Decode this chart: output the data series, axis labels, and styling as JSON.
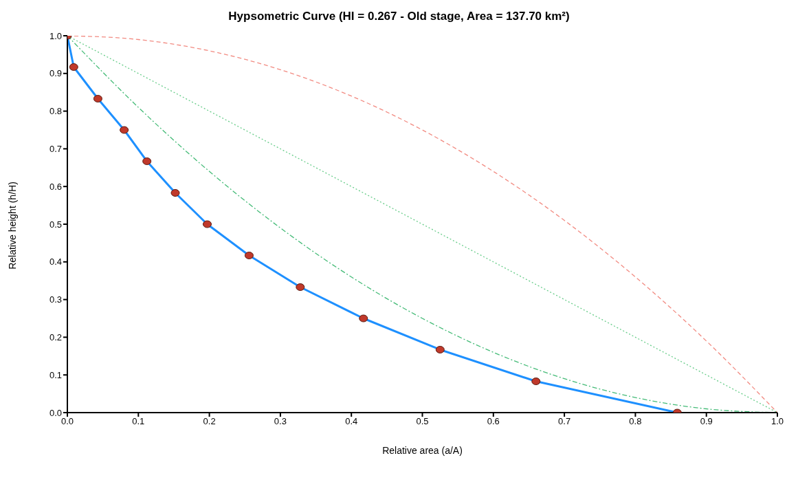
{
  "chart_data": {
    "type": "line",
    "title": "Hypsometric Curve (HI = 0.267 - Old stage, Area = 137.70 km²)",
    "xlabel": "Relative area (a/A)",
    "ylabel": "Relative height (h/H)",
    "xlim": [
      0,
      1
    ],
    "ylim": [
      0,
      1
    ],
    "xticks": [
      {
        "value": 0,
        "label": "0.0"
      },
      {
        "value": 0.1,
        "label": "0.1"
      },
      {
        "value": 0.2,
        "label": "0.2"
      },
      {
        "value": 0.3,
        "label": "0.3"
      },
      {
        "value": 0.4,
        "label": "0.4"
      },
      {
        "value": 0.5,
        "label": "0.5"
      },
      {
        "value": 0.6,
        "label": "0.6"
      },
      {
        "value": 0.7,
        "label": "0.7"
      },
      {
        "value": 0.8,
        "label": "0.8"
      },
      {
        "value": 0.9,
        "label": "0.9"
      },
      {
        "value": 1,
        "label": "1.0"
      }
    ],
    "yticks": [
      {
        "value": 0,
        "label": "0.0"
      },
      {
        "value": 0.1,
        "label": "0.1"
      },
      {
        "value": 0.2,
        "label": "0.2"
      },
      {
        "value": 0.3,
        "label": "0.3"
      },
      {
        "value": 0.4,
        "label": "0.4"
      },
      {
        "value": 0.5,
        "label": "0.5"
      },
      {
        "value": 0.6,
        "label": "0.6"
      },
      {
        "value": 0.7,
        "label": "0.7"
      },
      {
        "value": 0.8,
        "label": "0.8"
      },
      {
        "value": 0.9,
        "label": "0.9"
      },
      {
        "value": 1,
        "label": "1.0"
      }
    ],
    "grid": false,
    "series": [
      {
        "color": "#f28b82",
        "line_style": "dashed",
        "marker": "none",
        "x": [
          0,
          0.1,
          0.2,
          0.3,
          0.4,
          0.5,
          0.6,
          0.7,
          0.8,
          0.9,
          1
        ],
        "values": [
          1,
          0.99,
          0.96,
          0.91,
          0.84,
          0.75,
          0.64,
          0.51,
          0.36,
          0.19,
          0
        ]
      },
      {
        "color": "#66cc88",
        "line_style": "dotted",
        "marker": "none",
        "x": [
          0,
          1
        ],
        "values": [
          1,
          0
        ]
      },
      {
        "color": "#44bb77",
        "line_style": "dashdot",
        "marker": "none",
        "x": [
          0,
          0.1,
          0.2,
          0.3,
          0.4,
          0.5,
          0.6,
          0.7,
          0.8,
          0.9,
          1
        ],
        "values": [
          1,
          0.81,
          0.64,
          0.49,
          0.36,
          0.25,
          0.16,
          0.09,
          0.04,
          0.01,
          0
        ]
      },
      {
        "color": "#1e90ff",
        "line_style": "solid",
        "marker": "circle",
        "colors": [
          "#c0392b",
          "#c0392b",
          "#c0392b",
          "#c0392b",
          "#c0392b",
          "#c0392b",
          "#c0392b",
          "#c0392b",
          "#c0392b",
          "#c0392b",
          "#c0392b",
          "#c0392b",
          "#c0392b"
        ],
        "x": [
          0,
          0.009,
          0.043,
          0.08,
          0.112,
          0.152,
          0.197,
          0.256,
          0.328,
          0.417,
          0.525,
          0.66,
          0.859
        ],
        "values": [
          1,
          0.917,
          0.833,
          0.75,
          0.667,
          0.583,
          0.5,
          0.417,
          0.333,
          0.25,
          0.167,
          0.083,
          0
        ]
      }
    ]
  }
}
